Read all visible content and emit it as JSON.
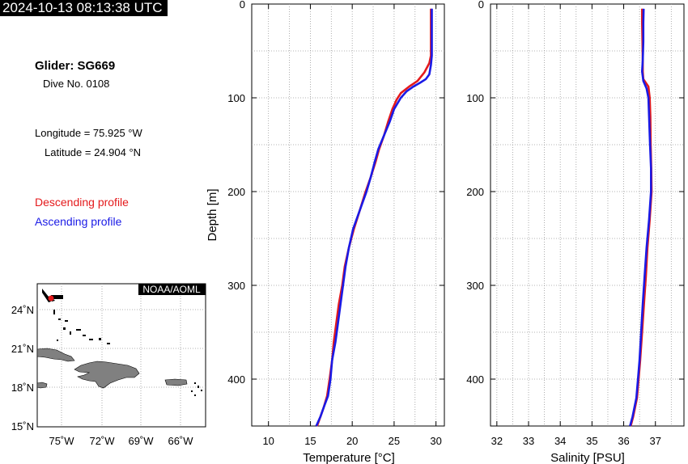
{
  "header": {
    "timestamp": "2024-10-13 08:13:38 UTC",
    "glider": "Glider: SG669",
    "dive": "Dive No. 0108",
    "longitude": "Longitude = 75.925 °W",
    "latitude": "Latitude = 24.904 °N",
    "legend_descending": "Descending profile",
    "legend_ascending": "Ascending profile"
  },
  "colors": {
    "descending": "#e41a1c",
    "ascending": "#1a1ae6",
    "land": "#808080"
  },
  "map": {
    "credit": "NOAA/AOML",
    "lat_ticks": [
      "24˚N",
      "21˚N",
      "18˚N",
      "15˚N"
    ],
    "lon_ticks": [
      "75˚W",
      "72˚W",
      "69˚W",
      "66˚W"
    ],
    "glider_lon": -75.925,
    "glider_lat": 24.904
  },
  "chart_data": [
    {
      "type": "line",
      "name": "temperature",
      "xlabel": "Temperature [°C]",
      "ylabel": "Depth [m]",
      "xlim": [
        8,
        31
      ],
      "ylim": [
        450,
        0
      ],
      "xticks": [
        10,
        15,
        20,
        25,
        30
      ],
      "yticks": [
        0,
        100,
        200,
        300,
        400
      ],
      "grid": true,
      "series": [
        {
          "name": "Descending profile",
          "color": "#e41a1c",
          "points": [
            [
              29.4,
              5
            ],
            [
              29.4,
              20
            ],
            [
              29.4,
              40
            ],
            [
              29.4,
              55
            ],
            [
              29.2,
              63
            ],
            [
              28.6,
              73
            ],
            [
              27.8,
              82
            ],
            [
              26.8,
              88
            ],
            [
              25.8,
              95
            ],
            [
              25.3,
              102
            ],
            [
              24.8,
              112
            ],
            [
              24.3,
              125
            ],
            [
              23.8,
              140
            ],
            [
              23.2,
              155
            ],
            [
              22.8,
              168
            ],
            [
              22.2,
              185
            ],
            [
              21.6,
              200
            ],
            [
              20.9,
              220
            ],
            [
              20.2,
              240
            ],
            [
              19.6,
              260
            ],
            [
              19.1,
              280
            ],
            [
              18.8,
              300
            ],
            [
              18.4,
              320
            ],
            [
              18.1,
              340
            ],
            [
              17.8,
              360
            ],
            [
              17.6,
              380
            ],
            [
              17.3,
              400
            ],
            [
              17.0,
              418
            ],
            [
              16.6,
              430
            ],
            [
              16.2,
              440
            ],
            [
              15.8,
              450
            ]
          ]
        },
        {
          "name": "Ascending profile",
          "color": "#1a1ae6",
          "points": [
            [
              29.5,
              5
            ],
            [
              29.5,
              20
            ],
            [
              29.5,
              40
            ],
            [
              29.5,
              55
            ],
            [
              29.4,
              65
            ],
            [
              29.2,
              75
            ],
            [
              28.8,
              80
            ],
            [
              28.1,
              84
            ],
            [
              27.3,
              88
            ],
            [
              26.5,
              93
            ],
            [
              25.8,
              100
            ],
            [
              25.0,
              112
            ],
            [
              24.5,
              125
            ],
            [
              23.8,
              140
            ],
            [
              23.1,
              155
            ],
            [
              22.7,
              168
            ],
            [
              22.2,
              185
            ],
            [
              21.7,
              200
            ],
            [
              20.9,
              220
            ],
            [
              20.1,
              240
            ],
            [
              19.6,
              260
            ],
            [
              19.2,
              280
            ],
            [
              18.9,
              300
            ],
            [
              18.6,
              320
            ],
            [
              18.3,
              340
            ],
            [
              18.0,
              360
            ],
            [
              17.6,
              380
            ],
            [
              17.4,
              400
            ],
            [
              17.1,
              418
            ],
            [
              16.6,
              430
            ],
            [
              16.2,
              440
            ],
            [
              15.7,
              450
            ]
          ]
        }
      ]
    },
    {
      "type": "line",
      "name": "salinity",
      "xlabel": "Salinity [PSU]",
      "ylabel": "",
      "xlim": [
        31.8,
        37.9
      ],
      "ylim": [
        450,
        0
      ],
      "xticks": [
        32,
        33,
        34,
        35,
        36,
        37
      ],
      "yticks": [
        0,
        100,
        200,
        300,
        400
      ],
      "grid": true,
      "series": [
        {
          "name": "Descending profile",
          "color": "#e41a1c",
          "points": [
            [
              36.58,
              5
            ],
            [
              36.58,
              20
            ],
            [
              36.59,
              40
            ],
            [
              36.6,
              60
            ],
            [
              36.6,
              72
            ],
            [
              36.62,
              80
            ],
            [
              36.78,
              88
            ],
            [
              36.82,
              100
            ],
            [
              36.84,
              120
            ],
            [
              36.85,
              150
            ],
            [
              36.87,
              175
            ],
            [
              36.88,
              200
            ],
            [
              36.82,
              230
            ],
            [
              36.75,
              260
            ],
            [
              36.7,
              290
            ],
            [
              36.64,
              320
            ],
            [
              36.58,
              350
            ],
            [
              36.52,
              380
            ],
            [
              36.47,
              400
            ],
            [
              36.42,
              420
            ],
            [
              36.3,
              440
            ],
            [
              36.22,
              450
            ]
          ]
        },
        {
          "name": "Ascending profile",
          "color": "#1a1ae6",
          "points": [
            [
              36.63,
              5
            ],
            [
              36.62,
              20
            ],
            [
              36.62,
              40
            ],
            [
              36.6,
              60
            ],
            [
              36.58,
              72
            ],
            [
              36.62,
              82
            ],
            [
              36.72,
              90
            ],
            [
              36.78,
              100
            ],
            [
              36.8,
              120
            ],
            [
              36.83,
              150
            ],
            [
              36.86,
              175
            ],
            [
              36.86,
              200
            ],
            [
              36.8,
              230
            ],
            [
              36.72,
              260
            ],
            [
              36.66,
              290
            ],
            [
              36.6,
              320
            ],
            [
              36.55,
              350
            ],
            [
              36.5,
              380
            ],
            [
              36.45,
              400
            ],
            [
              36.4,
              420
            ],
            [
              36.28,
              440
            ],
            [
              36.2,
              450
            ]
          ]
        }
      ]
    }
  ]
}
